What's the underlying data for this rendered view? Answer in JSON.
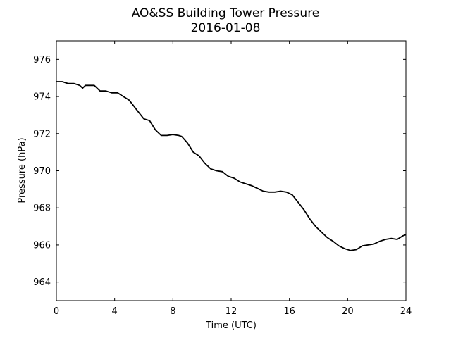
{
  "chart_data": {
    "type": "line",
    "title": "AO&SS Building Tower Pressure",
    "subtitle": "2016-01-08",
    "xlabel": "Time (UTC)",
    "ylabel": "Pressure (hPa)",
    "xlim": [
      0,
      24
    ],
    "ylim": [
      963,
      977
    ],
    "xticks": [
      0,
      4,
      8,
      12,
      16,
      20,
      24
    ],
    "yticks": [
      964,
      966,
      968,
      970,
      972,
      974,
      976
    ],
    "grid": false,
    "line_color": "#000000",
    "series": [
      {
        "x": [
          0,
          0.4,
          0.8,
          1.2,
          1.6,
          1.8,
          2.0,
          2.4,
          2.6,
          3.0,
          3.4,
          3.8,
          4.2,
          4.6,
          5.0,
          5.2,
          5.6,
          6.0,
          6.4,
          6.8,
          7.2,
          7.6,
          8.0,
          8.4,
          8.6,
          9.0,
          9.4,
          9.8,
          10.2,
          10.6,
          11.0,
          11.4,
          11.8,
          12.2,
          12.6,
          13.0,
          13.4,
          13.8,
          14.2,
          14.6,
          15.0,
          15.4,
          15.8,
          16.2,
          16.6,
          17.0,
          17.4,
          17.8,
          18.2,
          18.6,
          19.0,
          19.4,
          19.8,
          20.2,
          20.6,
          21.0,
          21.4,
          21.8,
          22.2,
          22.6,
          23.0,
          23.4,
          23.8,
          24.0
        ],
        "y": [
          974.8,
          974.8,
          974.7,
          974.7,
          974.6,
          974.45,
          974.6,
          974.6,
          974.6,
          974.3,
          974.3,
          974.2,
          974.2,
          974.0,
          973.8,
          973.6,
          973.2,
          972.8,
          972.7,
          972.2,
          971.9,
          971.9,
          971.95,
          971.9,
          971.85,
          971.5,
          971.0,
          970.8,
          970.4,
          970.1,
          970.0,
          969.95,
          969.7,
          969.6,
          969.4,
          969.3,
          969.2,
          969.05,
          968.9,
          968.85,
          968.85,
          968.9,
          968.85,
          968.7,
          968.3,
          967.9,
          967.4,
          967.0,
          966.7,
          966.4,
          966.2,
          965.95,
          965.8,
          965.7,
          965.75,
          965.95,
          966.0,
          966.05,
          966.2,
          966.3,
          966.35,
          966.3,
          966.5,
          966.55
        ]
      }
    ]
  }
}
